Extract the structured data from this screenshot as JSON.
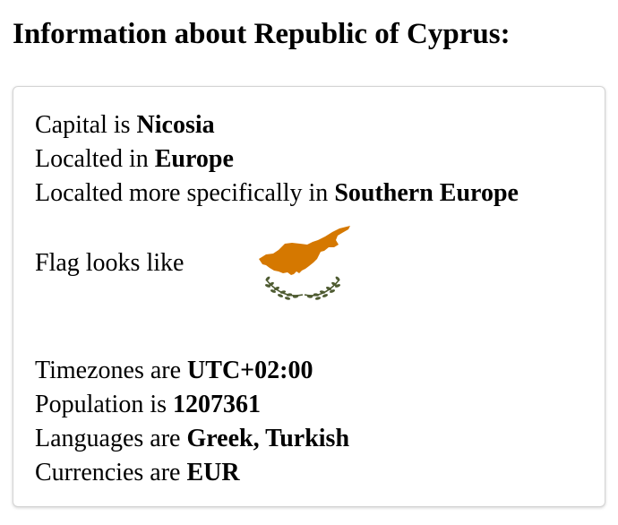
{
  "page": {
    "title": "Information about Republic of Cyprus:"
  },
  "country": {
    "capital_prefix": "Capital is ",
    "capital": "Nicosia",
    "region_prefix": "Localted in ",
    "region": "Europe",
    "subregion_prefix": "Localted more specifically in ",
    "subregion": "Southern Europe",
    "flag_label": "Flag looks like",
    "timezones_prefix": "Timezones are ",
    "timezones": "UTC+02:00",
    "population_prefix": "Population is ",
    "population": "1207361",
    "languages_prefix": "Languages are ",
    "languages": "Greek, Turkish",
    "currencies_prefix": "Currencies are ",
    "currencies": "EUR"
  },
  "flag": {
    "icon": "cyprus-flag-icon",
    "island_color": "#D57800",
    "olive_color": "#4E5B31",
    "background_color": "#FFFFFF"
  }
}
